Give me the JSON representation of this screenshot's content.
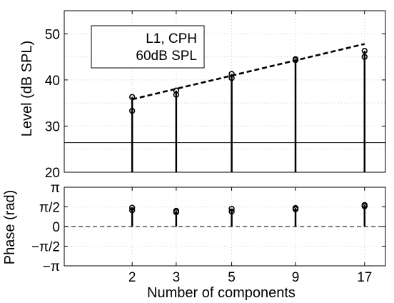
{
  "chart_data": [
    {
      "type": "stem",
      "ylabel": "Level (dB SPL)",
      "ylim": [
        20,
        55
      ],
      "yticks": [
        "20",
        "30",
        "40",
        "50"
      ],
      "grid": true,
      "legend": {
        "lines": [
          "L1, CPH",
          "60dB SPL"
        ],
        "placement": "top-left"
      },
      "x": [
        2,
        3,
        5,
        9,
        17
      ],
      "series": [
        {
          "values": [
            36.3,
            37.7,
            41.3,
            44.5,
            46.3
          ]
        },
        {
          "values": [
            33.3,
            36.8,
            40.4,
            44.3,
            45.0
          ]
        }
      ],
      "trend_line": {
        "x": [
          2,
          17
        ],
        "y": [
          35.8,
          47.8
        ]
      },
      "reference_line_y": 26.4
    },
    {
      "type": "stem",
      "ylabel": "Phase (rad)",
      "ylim": [
        -3.1416,
        3.1416
      ],
      "yticks": [
        "π",
        "π/2",
        "0",
        "−π/2",
        "−π"
      ],
      "ytick_values": [
        3.1416,
        1.5708,
        0,
        -1.5708,
        -3.1416
      ],
      "grid": true,
      "xlabel": "Number of components",
      "x": [
        2,
        3,
        5,
        9,
        17
      ],
      "xtick_labels": [
        "2",
        "3",
        "5",
        "9",
        "17"
      ],
      "series": [
        {
          "values": [
            1.5,
            1.25,
            1.42,
            1.48,
            1.72
          ]
        },
        {
          "values": [
            1.3,
            1.15,
            1.2,
            1.38,
            1.62
          ]
        }
      ],
      "zero_line": 0
    }
  ]
}
